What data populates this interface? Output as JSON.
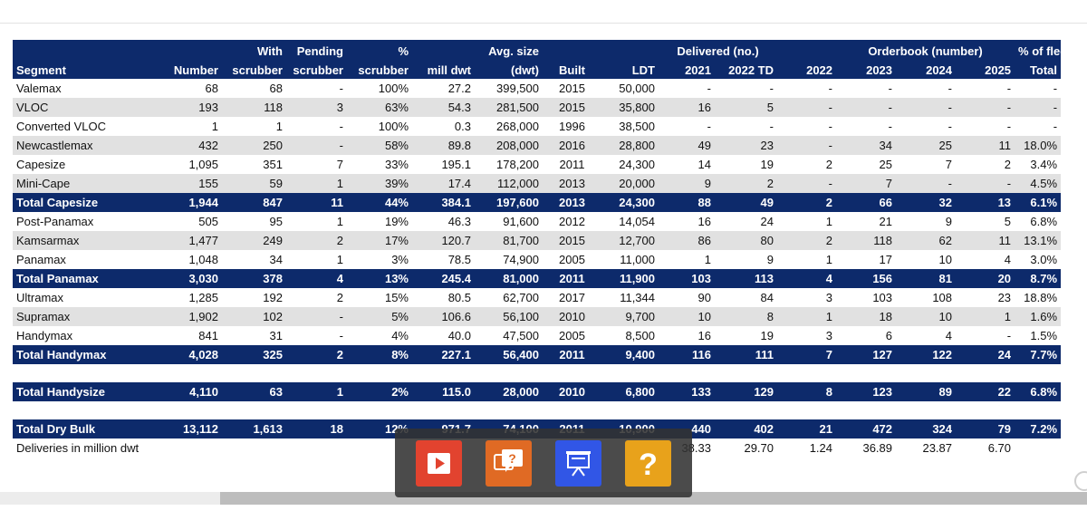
{
  "colors": {
    "header": "#0d2a6b",
    "alt_row": "#e1e1e1",
    "play": "#e2432f",
    "quiz": "#e06a24",
    "slides": "#3156e6",
    "help": "#e8a21b"
  },
  "header": {
    "top": [
      "",
      "",
      "With",
      "Pending",
      "%",
      "",
      "Avg. size",
      "",
      "",
      "Delivered (no.)",
      "",
      "Orderbook (number)",
      "",
      "% of fleet"
    ],
    "bottom": [
      "Segment",
      "Number",
      "scrubber",
      "scrubber",
      "scrubber",
      "mill dwt",
      "(dwt)",
      "Built",
      "LDT",
      "2021",
      "2022 TD",
      "2022",
      "2023",
      "2024",
      "2025",
      "Total"
    ]
  },
  "rows": [
    {
      "type": "norm",
      "cells": [
        "Valemax",
        "68",
        "68",
        "-",
        "100%",
        "27.2",
        "399,500",
        "2015",
        "50,000",
        "-",
        "-",
        "-",
        "-",
        "-",
        "-",
        "-"
      ]
    },
    {
      "type": "alt",
      "cells": [
        "VLOC",
        "193",
        "118",
        "3",
        "63%",
        "54.3",
        "281,500",
        "2015",
        "35,800",
        "16",
        "5",
        "-",
        "-",
        "-",
        "-",
        "-"
      ]
    },
    {
      "type": "norm",
      "cells": [
        "Converted VLOC",
        "1",
        "1",
        "-",
        "100%",
        "0.3",
        "268,000",
        "1996",
        "38,500",
        "-",
        "-",
        "-",
        "-",
        "-",
        "-",
        "-"
      ]
    },
    {
      "type": "alt",
      "cells": [
        "Newcastlemax",
        "432",
        "250",
        "-",
        "58%",
        "89.8",
        "208,000",
        "2016",
        "28,800",
        "49",
        "23",
        "-",
        "34",
        "25",
        "11",
        "18.0%"
      ]
    },
    {
      "type": "norm",
      "cells": [
        "Capesize",
        "1,095",
        "351",
        "7",
        "33%",
        "195.1",
        "178,200",
        "2011",
        "24,300",
        "14",
        "19",
        "2",
        "25",
        "7",
        "2",
        "3.4%"
      ]
    },
    {
      "type": "alt",
      "cells": [
        "Mini-Cape",
        "155",
        "59",
        "1",
        "39%",
        "17.4",
        "112,000",
        "2013",
        "20,000",
        "9",
        "2",
        "-",
        "7",
        "-",
        "-",
        "4.5%"
      ]
    },
    {
      "type": "total",
      "cells": [
        "Total Capesize",
        "1,944",
        "847",
        "11",
        "44%",
        "384.1",
        "197,600",
        "2013",
        "24,300",
        "88",
        "49",
        "2",
        "66",
        "32",
        "13",
        "6.1%"
      ]
    },
    {
      "type": "norm",
      "cells": [
        "Post-Panamax",
        "505",
        "95",
        "1",
        "19%",
        "46.3",
        "91,600",
        "2012",
        "14,054",
        "16",
        "24",
        "1",
        "21",
        "9",
        "5",
        "6.8%"
      ]
    },
    {
      "type": "alt",
      "cells": [
        "Kamsarmax",
        "1,477",
        "249",
        "2",
        "17%",
        "120.7",
        "81,700",
        "2015",
        "12,700",
        "86",
        "80",
        "2",
        "118",
        "62",
        "11",
        "13.1%"
      ]
    },
    {
      "type": "norm",
      "cells": [
        "Panamax",
        "1,048",
        "34",
        "1",
        "3%",
        "78.5",
        "74,900",
        "2005",
        "11,000",
        "1",
        "9",
        "1",
        "17",
        "10",
        "4",
        "3.0%"
      ]
    },
    {
      "type": "total",
      "cells": [
        "Total Panamax",
        "3,030",
        "378",
        "4",
        "13%",
        "245.4",
        "81,000",
        "2011",
        "11,900",
        "103",
        "113",
        "4",
        "156",
        "81",
        "20",
        "8.7%"
      ]
    },
    {
      "type": "norm",
      "cells": [
        "Ultramax",
        "1,285",
        "192",
        "2",
        "15%",
        "80.5",
        "62,700",
        "2017",
        "11,344",
        "90",
        "84",
        "3",
        "103",
        "108",
        "23",
        "18.8%"
      ]
    },
    {
      "type": "alt",
      "cells": [
        "Supramax",
        "1,902",
        "102",
        "-",
        "5%",
        "106.6",
        "56,100",
        "2010",
        "9,700",
        "10",
        "8",
        "1",
        "18",
        "10",
        "1",
        "1.6%"
      ]
    },
    {
      "type": "norm",
      "cells": [
        "Handymax",
        "841",
        "31",
        "-",
        "4%",
        "40.0",
        "47,500",
        "2005",
        "8,500",
        "16",
        "19",
        "3",
        "6",
        "4",
        "-",
        "1.5%"
      ]
    },
    {
      "type": "total",
      "cells": [
        "Total Handymax",
        "4,028",
        "325",
        "2",
        "8%",
        "227.1",
        "56,400",
        "2011",
        "9,400",
        "116",
        "111",
        "7",
        "127",
        "122",
        "24",
        "7.7%"
      ]
    },
    {
      "type": "blank",
      "cells": [
        "",
        "",
        "",
        "",
        "",
        "",
        "",
        "",
        "",
        "",
        "",
        "",
        "",
        "",
        "",
        ""
      ]
    },
    {
      "type": "total",
      "cells": [
        "Total Handysize",
        "4,110",
        "63",
        "1",
        "2%",
        "115.0",
        "28,000",
        "2010",
        "6,800",
        "133",
        "129",
        "8",
        "123",
        "89",
        "22",
        "6.8%"
      ]
    },
    {
      "type": "blank",
      "cells": [
        "",
        "",
        "",
        "",
        "",
        "",
        "",
        "",
        "",
        "",
        "",
        "",
        "",
        "",
        "",
        ""
      ]
    },
    {
      "type": "total",
      "cells": [
        "Total Dry Bulk",
        "13,112",
        "1,613",
        "18",
        "12%",
        "971.7",
        "74,100",
        "2011",
        "10,900",
        "440",
        "402",
        "21",
        "472",
        "324",
        "79",
        "7.2%"
      ]
    },
    {
      "type": "foot",
      "cells": [
        "Deliveries in million dwt",
        "",
        "",
        "",
        "",
        "",
        "",
        "",
        "",
        "38.33",
        "29.70",
        "1.24",
        "36.89",
        "23.87",
        "6.70",
        ""
      ]
    }
  ],
  "toolbar": {
    "buttons": [
      {
        "icon": "play-video-icon"
      },
      {
        "icon": "quiz-bubble-icon"
      },
      {
        "icon": "presentation-icon"
      },
      {
        "icon": "help-question-icon",
        "label": "?"
      }
    ]
  }
}
